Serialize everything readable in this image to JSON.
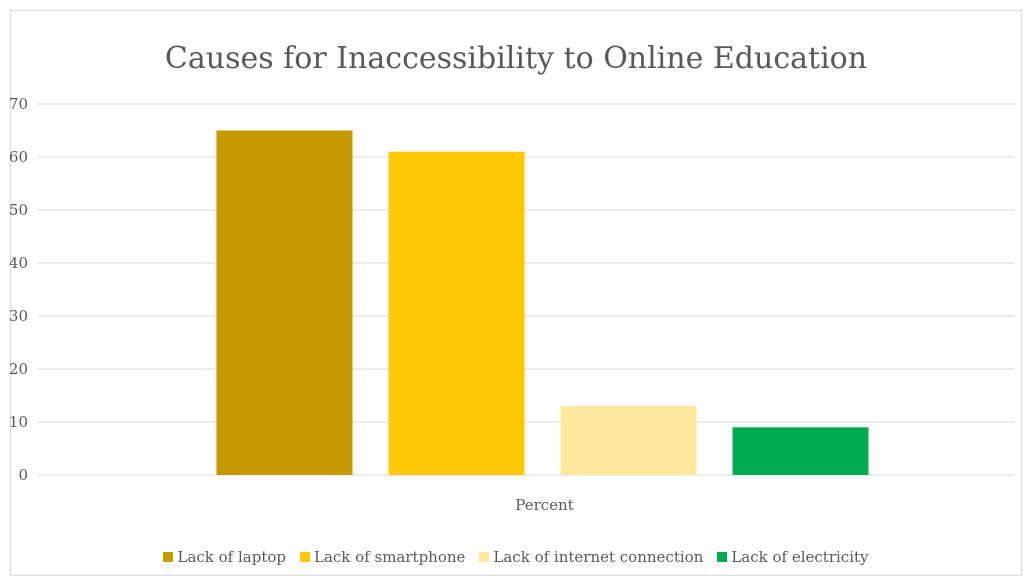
{
  "chart_data": {
    "type": "bar",
    "title": "Causes for Inaccessibility to Online Education",
    "categories": [
      "Percent"
    ],
    "series": [
      {
        "name": "Lack of laptop",
        "values": [
          65
        ],
        "color": "#c49a00"
      },
      {
        "name": "Lack of smartphone",
        "values": [
          61
        ],
        "color": "#ffc906"
      },
      {
        "name": "Lack of internet connection",
        "values": [
          13
        ],
        "color": "#fde89d"
      },
      {
        "name": "Lack of electricity",
        "values": [
          9
        ],
        "color": "#00ab50"
      }
    ],
    "xlabel": "",
    "ylabel": "",
    "ylim": [
      0,
      70
    ],
    "yticks": [
      0,
      10,
      20,
      30,
      40,
      50,
      60,
      70
    ],
    "grid": true,
    "legend_position": "bottom"
  }
}
